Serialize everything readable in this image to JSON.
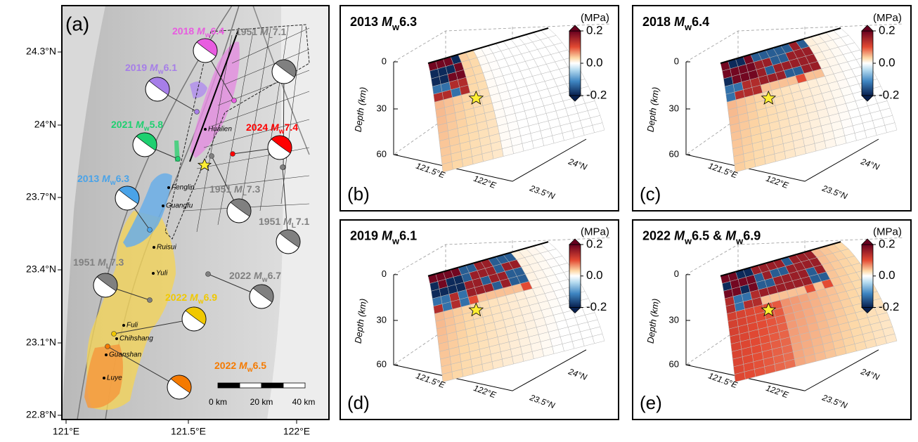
{
  "map": {
    "label": "(a)",
    "lat_ticks": [
      "24.3°N",
      "24°N",
      "23.7°N",
      "23.4°N",
      "23.1°N",
      "22.8°N"
    ],
    "lon_ticks": [
      "121°E",
      "121.5°E",
      "122°E"
    ],
    "events": [
      {
        "parts": [
          {
            "t": "2018 "
          },
          {
            "t": "M",
            "style": "italic"
          },
          {
            "t": "w",
            "style": "sub"
          },
          {
            "t": "6.4"
          }
        ],
        "color": "#e85ce0"
      },
      {
        "parts": [
          {
            "t": "1951 "
          },
          {
            "t": "M",
            "style": "italic"
          },
          {
            "t": "L",
            "style": "sub"
          },
          {
            "t": "7.1"
          }
        ],
        "color": "#808080"
      },
      {
        "parts": [
          {
            "t": "2019 "
          },
          {
            "t": "M",
            "style": "italic"
          },
          {
            "t": "w",
            "style": "sub"
          },
          {
            "t": "6.1"
          }
        ],
        "color": "#a67ee8"
      },
      {
        "parts": [
          {
            "t": "2021 "
          },
          {
            "t": "M",
            "style": "italic"
          },
          {
            "t": "w",
            "style": "sub"
          },
          {
            "t": "5.8"
          }
        ],
        "color": "#1ed070"
      },
      {
        "parts": [
          {
            "t": "2024 "
          },
          {
            "t": "M",
            "style": "italic"
          },
          {
            "t": "w",
            "style": "sub"
          },
          {
            "t": "7.4"
          }
        ],
        "color": "#ff0000"
      },
      {
        "parts": [
          {
            "t": "2013 "
          },
          {
            "t": "M",
            "style": "italic"
          },
          {
            "t": "w",
            "style": "sub"
          },
          {
            "t": "6.3"
          }
        ],
        "color": "#4aa3e8"
      },
      {
        "parts": [
          {
            "t": "1951 "
          },
          {
            "t": "M",
            "style": "italic"
          },
          {
            "t": "L",
            "style": "sub"
          },
          {
            "t": "7.3"
          }
        ],
        "color": "#808080"
      },
      {
        "parts": [
          {
            "t": "1951 "
          },
          {
            "t": "M",
            "style": "italic"
          },
          {
            "t": "L",
            "style": "sub"
          },
          {
            "t": "7.1"
          }
        ],
        "color": "#808080"
      },
      {
        "parts": [
          {
            "t": "1951 "
          },
          {
            "t": "M",
            "style": "italic"
          },
          {
            "t": "L",
            "style": "sub"
          },
          {
            "t": "7.3"
          }
        ],
        "color": "#808080"
      },
      {
        "parts": [
          {
            "t": "2022 "
          },
          {
            "t": "M",
            "style": "italic"
          },
          {
            "t": "w",
            "style": "sub"
          },
          {
            "t": "6.7"
          }
        ],
        "color": "#808080"
      },
      {
        "parts": [
          {
            "t": "2022 "
          },
          {
            "t": "M",
            "style": "italic"
          },
          {
            "t": "w",
            "style": "sub"
          },
          {
            "t": "6.9"
          }
        ],
        "color": "#f0c800"
      },
      {
        "parts": [
          {
            "t": "2022 "
          },
          {
            "t": "M",
            "style": "italic"
          },
          {
            "t": "w",
            "style": "sub"
          },
          {
            "t": "6.5"
          }
        ],
        "color": "#f57a00"
      }
    ],
    "places": [
      "Hualien",
      "Fenglin",
      "Guangfu",
      "Ruisui",
      "Yuli",
      "Fuli",
      "Chihshang",
      "Guanshan",
      "Luye"
    ],
    "scale_bar": [
      "0 km",
      "20 km",
      "40 km"
    ]
  },
  "panels": [
    {
      "label": "(b)",
      "title_parts": [
        {
          "t": "2013 "
        },
        {
          "t": "M",
          "style": "italic"
        },
        {
          "t": "w",
          "style": "sub"
        },
        {
          "t": "6.3"
        }
      ],
      "color_unit": "(MPa)",
      "color_ticks": [
        "0.2",
        "0.0",
        "-0.2"
      ],
      "depth_label": "Depth (km)",
      "depth_ticks": [
        "0",
        "30",
        "60"
      ],
      "lon_ticks": [
        "121.5°E",
        "122°E"
      ],
      "lat_ticks": [
        "24°N",
        "23.5°N"
      ]
    },
    {
      "label": "(c)",
      "title_parts": [
        {
          "t": "2018 "
        },
        {
          "t": "M",
          "style": "italic"
        },
        {
          "t": "w",
          "style": "sub"
        },
        {
          "t": "6.4"
        }
      ],
      "color_unit": "(MPa)",
      "color_ticks": [
        "0.2",
        "0.0",
        "-0.2"
      ],
      "depth_label": "Depth (km)",
      "depth_ticks": [
        "0",
        "30",
        "60"
      ],
      "lon_ticks": [
        "121.5°E",
        "122°E"
      ],
      "lat_ticks": [
        "24°N",
        "23.5°N"
      ]
    },
    {
      "label": "(d)",
      "title_parts": [
        {
          "t": "2019 "
        },
        {
          "t": "M",
          "style": "italic"
        },
        {
          "t": "w",
          "style": "sub"
        },
        {
          "t": "6.1"
        }
      ],
      "color_unit": "(MPa)",
      "color_ticks": [
        "0.2",
        "0.0",
        "-0.2"
      ],
      "depth_label": "Depth (km)",
      "depth_ticks": [
        "0",
        "30",
        "60"
      ],
      "lon_ticks": [
        "121.5°E",
        "122°E"
      ],
      "lat_ticks": [
        "24°N",
        "23.5°N"
      ]
    },
    {
      "label": "(e)",
      "title_parts": [
        {
          "t": "2022 "
        },
        {
          "t": "M",
          "style": "italic"
        },
        {
          "t": "w",
          "style": "sub"
        },
        {
          "t": "6.5 & "
        },
        {
          "t": "M",
          "style": "italic"
        },
        {
          "t": "w",
          "style": "sub"
        },
        {
          "t": "6.9"
        }
      ],
      "color_unit": "(MPa)",
      "color_ticks": [
        "0.2",
        "0.0",
        "-0.2"
      ],
      "depth_label": "Depth (km)",
      "depth_ticks": [
        "0",
        "30",
        "60"
      ],
      "lon_ticks": [
        "121.5°E",
        "122°E"
      ],
      "lat_ticks": [
        "24°N",
        "23.5°N"
      ]
    }
  ]
}
